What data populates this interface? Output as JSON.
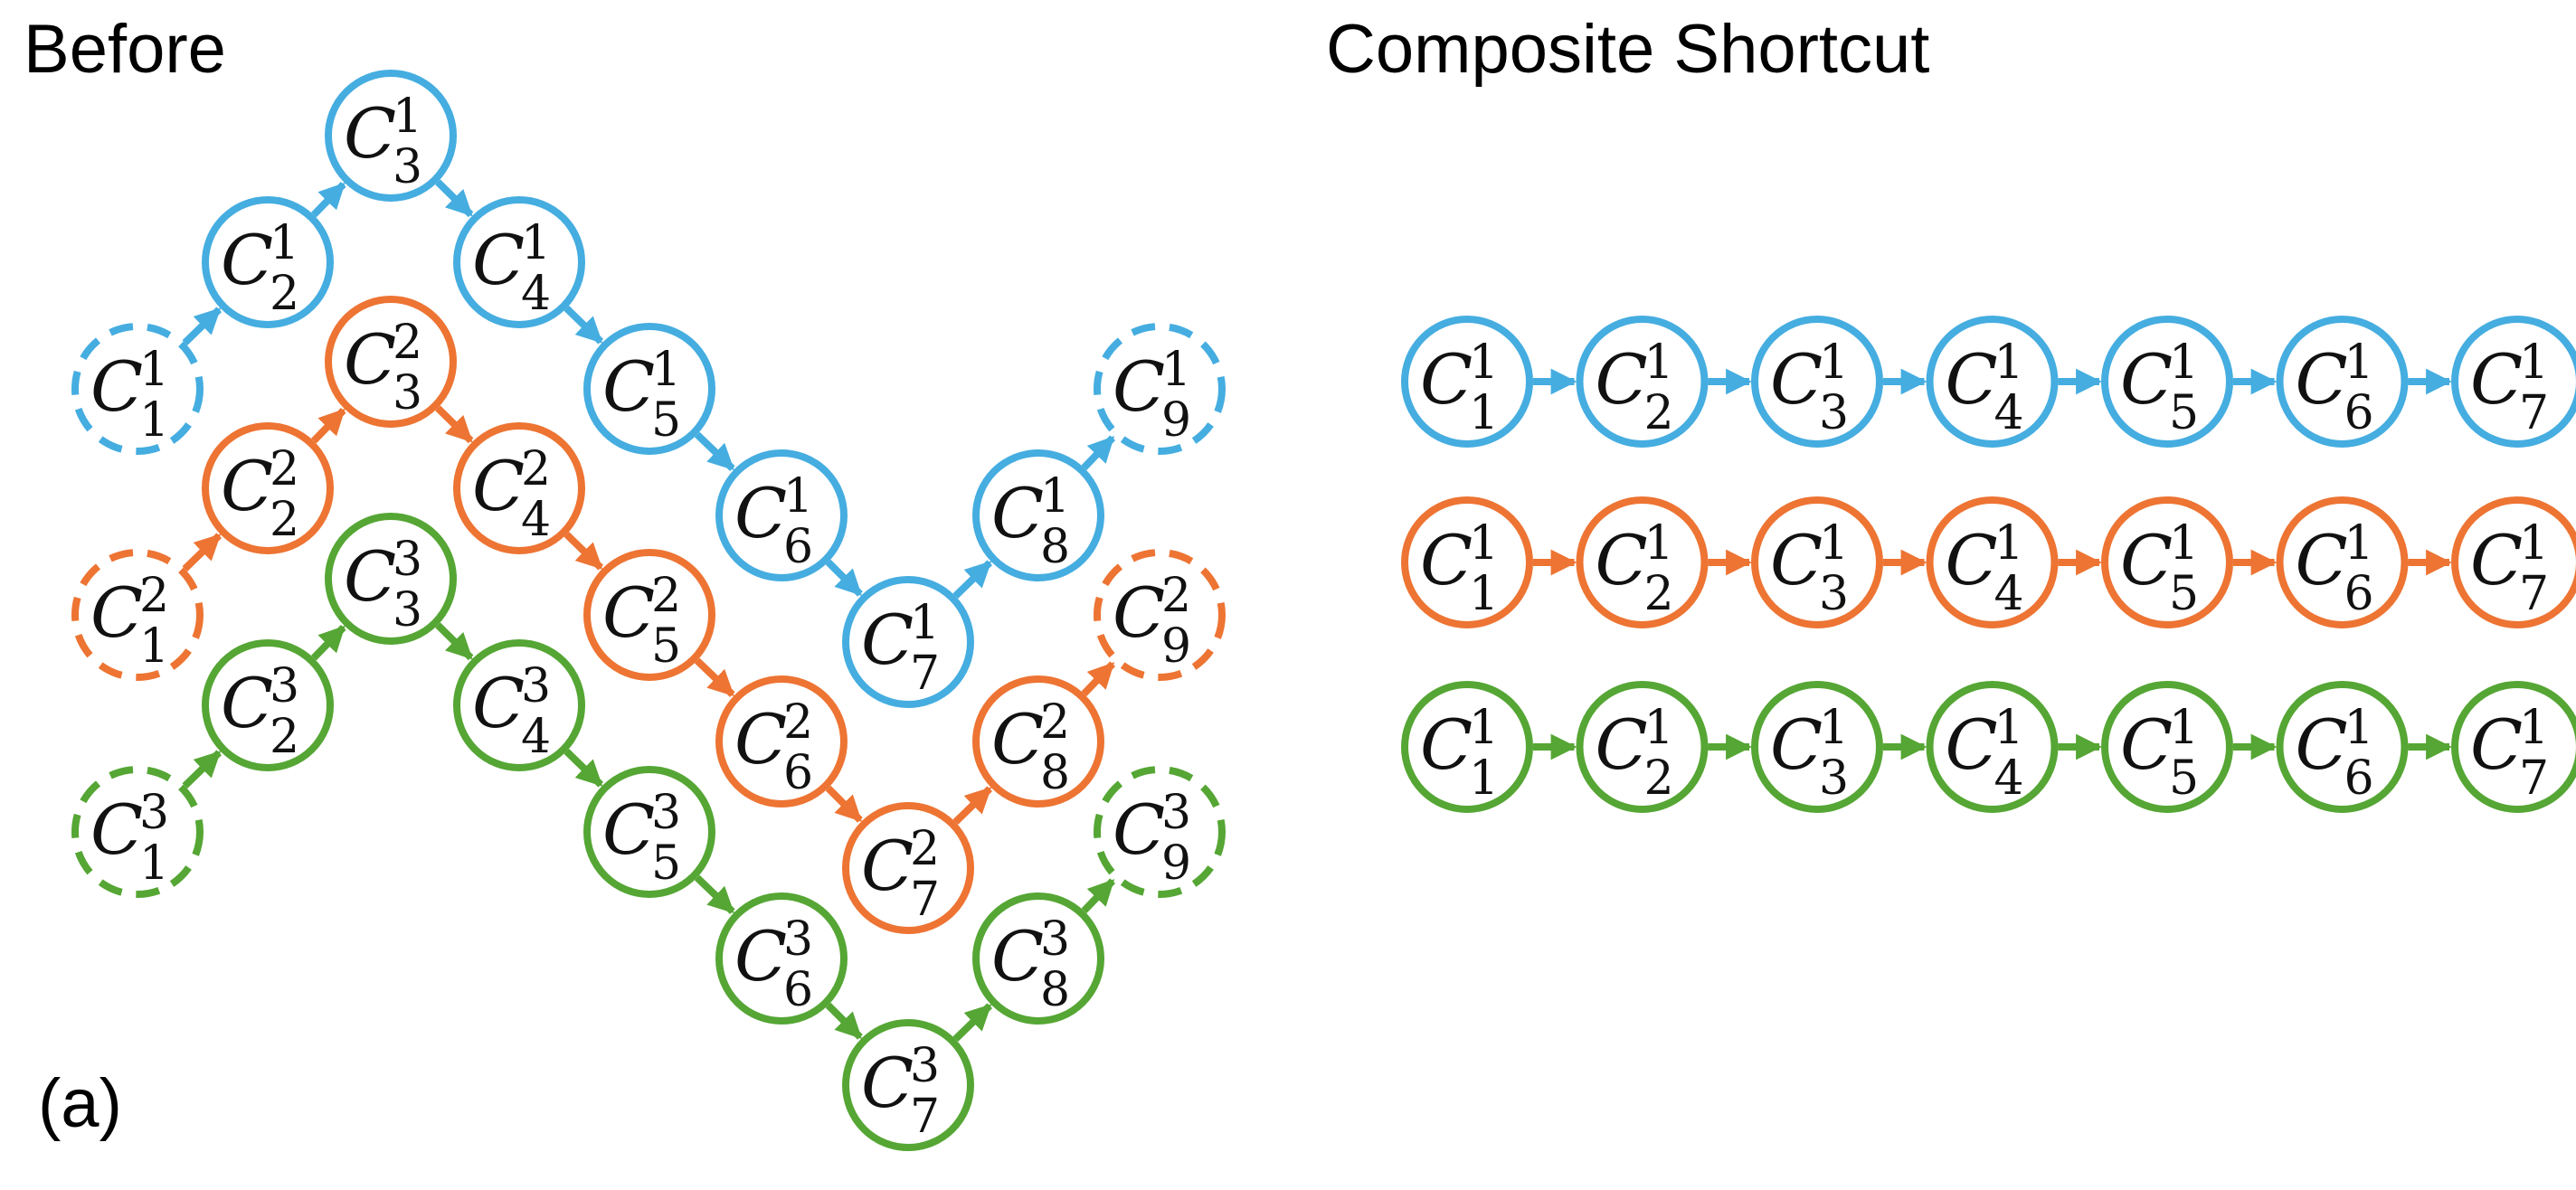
{
  "labels": {
    "before_title": "Before",
    "after_title": "Composite Shortcut",
    "panel_tag": "(a)"
  },
  "node_symbol": "C",
  "colors": {
    "1": "#45ade0",
    "2": "#ed7433",
    "3": "#55a634"
  },
  "before": {
    "chains": [
      {
        "superscript": "1",
        "color_key": "1",
        "nodes": [
          {
            "sub": "1",
            "dashed": true
          },
          {
            "sub": "2",
            "dashed": false
          },
          {
            "sub": "3",
            "dashed": false
          },
          {
            "sub": "4",
            "dashed": false
          },
          {
            "sub": "5",
            "dashed": false
          },
          {
            "sub": "6",
            "dashed": false
          },
          {
            "sub": "7",
            "dashed": false
          },
          {
            "sub": "8",
            "dashed": false
          },
          {
            "sub": "9",
            "dashed": true
          }
        ]
      },
      {
        "superscript": "2",
        "color_key": "2",
        "nodes": [
          {
            "sub": "1",
            "dashed": true
          },
          {
            "sub": "2",
            "dashed": false
          },
          {
            "sub": "3",
            "dashed": false
          },
          {
            "sub": "4",
            "dashed": false
          },
          {
            "sub": "5",
            "dashed": false
          },
          {
            "sub": "6",
            "dashed": false
          },
          {
            "sub": "7",
            "dashed": false
          },
          {
            "sub": "8",
            "dashed": false
          },
          {
            "sub": "9",
            "dashed": true
          }
        ]
      },
      {
        "superscript": "3",
        "color_key": "3",
        "nodes": [
          {
            "sub": "1",
            "dashed": true
          },
          {
            "sub": "2",
            "dashed": false
          },
          {
            "sub": "3",
            "dashed": false
          },
          {
            "sub": "4",
            "dashed": false
          },
          {
            "sub": "5",
            "dashed": false
          },
          {
            "sub": "6",
            "dashed": false
          },
          {
            "sub": "7",
            "dashed": false
          },
          {
            "sub": "8",
            "dashed": false
          },
          {
            "sub": "9",
            "dashed": true
          }
        ]
      }
    ]
  },
  "after": {
    "rows": [
      {
        "color_key": "1",
        "nodes": [
          {
            "sup": "1",
            "sub": "1"
          },
          {
            "sup": "1",
            "sub": "2"
          },
          {
            "sup": "1",
            "sub": "3"
          },
          {
            "sup": "1",
            "sub": "4"
          },
          {
            "sup": "1",
            "sub": "5"
          },
          {
            "sup": "1",
            "sub": "6"
          },
          {
            "sup": "1",
            "sub": "7"
          }
        ]
      },
      {
        "color_key": "2",
        "nodes": [
          {
            "sup": "1",
            "sub": "1"
          },
          {
            "sup": "1",
            "sub": "2"
          },
          {
            "sup": "1",
            "sub": "3"
          },
          {
            "sup": "1",
            "sub": "4"
          },
          {
            "sup": "1",
            "sub": "5"
          },
          {
            "sup": "1",
            "sub": "6"
          },
          {
            "sup": "1",
            "sub": "7"
          }
        ]
      },
      {
        "color_key": "3",
        "nodes": [
          {
            "sup": "1",
            "sub": "1"
          },
          {
            "sup": "1",
            "sub": "2"
          },
          {
            "sup": "1",
            "sub": "3"
          },
          {
            "sup": "1",
            "sub": "4"
          },
          {
            "sup": "1",
            "sub": "5"
          },
          {
            "sup": "1",
            "sub": "6"
          },
          {
            "sup": "1",
            "sub": "7"
          }
        ]
      }
    ]
  }
}
